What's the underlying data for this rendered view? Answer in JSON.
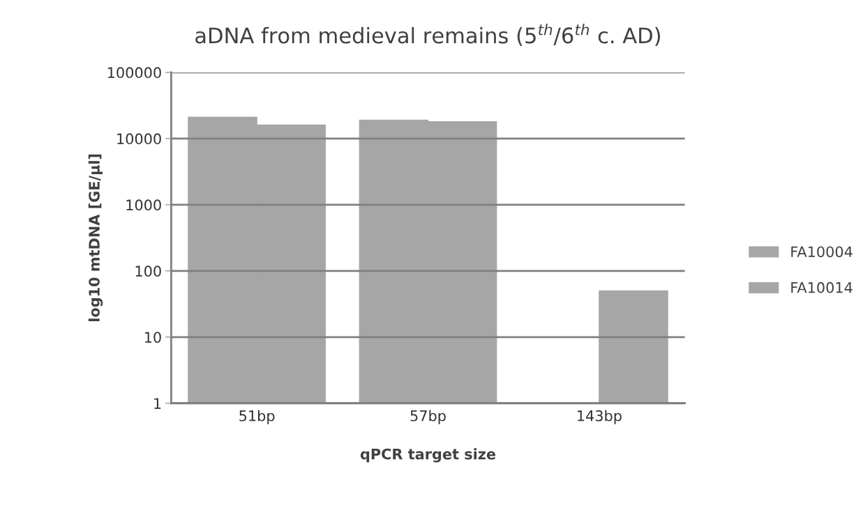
{
  "chart_data": {
    "type": "bar",
    "title": "aDNA from medieval remains (5$^{th}$/6$^{th}$ c. AD)",
    "xlabel": "qPCR target size",
    "ylabel": "log10 mtDNA [GE/µl]",
    "categories": [
      "51bp",
      "57bp",
      "143bp"
    ],
    "series": [
      {
        "name": "FA10004",
        "color": "#a6a6a6",
        "values": [
          21000,
          19000,
          null
        ]
      },
      {
        "name": "FA10014",
        "color": "#a6a6a6",
        "values": [
          16000,
          18000,
          50
        ]
      }
    ],
    "log": "y",
    "ylim": [
      1,
      100000
    ],
    "yticks": [
      1,
      10,
      100,
      1000,
      10000,
      100000
    ],
    "grid": "y",
    "legend": "right"
  }
}
